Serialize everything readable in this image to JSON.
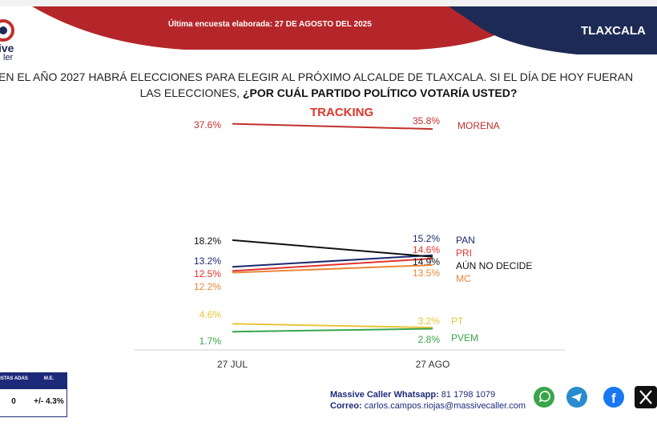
{
  "header": {
    "survey_text": "Última encuesta elaborada: 27 DE AGOSTO DEL 2025",
    "region": "TLAXCALA",
    "logo_text_1": "ive",
    "logo_text_2": "ler"
  },
  "question": {
    "line1": "EN EL AÑO 2027 HABRÁ ELECCIONES PARA ELEGIR AL PRÓXIMO ALCALDE DE TLAXCALA. SI EL DÍA DE HOY FUERAN",
    "line2_prefix": "LAS ELECCIONES, ",
    "line2_bold": "¿POR CUÁL PARTIDO POLÍTICO VOTARÍA USTED?"
  },
  "chart_data": {
    "type": "line",
    "title": "TRACKING",
    "categories": [
      "27 JUL",
      "27 AGO"
    ],
    "series": [
      {
        "name": "MORENA",
        "values": [
          37.6,
          35.8
        ],
        "color": "#c0302b"
      },
      {
        "name": "PAN",
        "values": [
          13.2,
          15.2
        ],
        "color": "#1d2a6e"
      },
      {
        "name": "PRI",
        "values": [
          12.5,
          14.6
        ],
        "color": "#e0352c"
      },
      {
        "name": "AÚN NO DECIDE",
        "values": [
          18.2,
          14.9
        ],
        "color": "#111111"
      },
      {
        "name": "MC",
        "values": [
          12.2,
          13.5
        ],
        "color": "#e8873a"
      },
      {
        "name": "PT",
        "values": [
          4.6,
          3.2
        ],
        "color": "#e9c43a"
      },
      {
        "name": "PVEM",
        "values": [
          1.7,
          2.8
        ],
        "color": "#3aa54a"
      }
    ]
  },
  "stats": {
    "col1_label": "ISTAS ADAS",
    "col2_label": "M.E.",
    "col1_value": "0",
    "col2_value": "+/- 4.3%"
  },
  "footer": {
    "whatsapp_label": "Massive Caller Whatsapp:",
    "whatsapp_value": " 81 1798 1079",
    "email_label": "Correo:",
    "email_value": " carlos.campos.riojas@massivecaller.com"
  },
  "colors": {
    "header_red": "#b5262a",
    "header_navy": "#1d2a55",
    "brand_navy": "#1d2a7a"
  },
  "icons": [
    "whatsapp-icon",
    "telegram-icon",
    "facebook-icon",
    "x-icon"
  ]
}
